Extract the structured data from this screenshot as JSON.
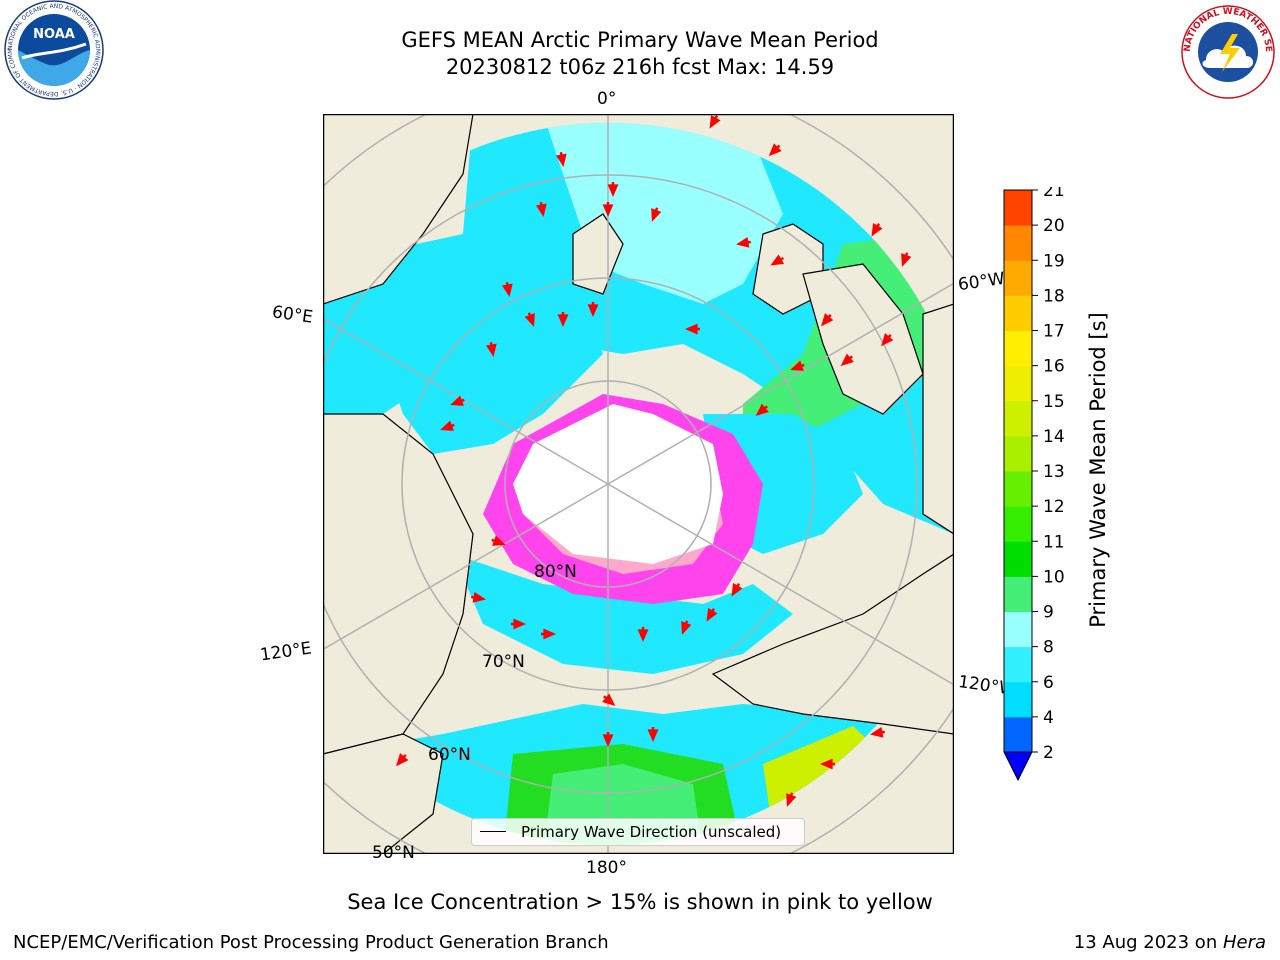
{
  "title": {
    "line1": "GEFS MEAN Arctic Primary Wave Mean Period",
    "line2": "20230812 t06z 216h fcst   Max: 14.59"
  },
  "logos": {
    "left": "noaa-logo",
    "right": "national-weather-service-logo",
    "left_text": "NOAA",
    "left_ring_text": "NATIONAL OCEANIC AND ATMOSPHERIC ADMINISTRATION · U.S. DEPARTMENT OF COMMERCE",
    "right_ring_text": "NATIONAL WEATHER SERVICE"
  },
  "map": {
    "projection": "north-polar-stereographic",
    "longitude_labels": {
      "top": "0°",
      "left_upper": "60°E",
      "left_lower": "120°E",
      "bottom": "180°",
      "right_upper": "60°W",
      "right_lower": "120°W"
    },
    "latitude_labels": [
      "80°N",
      "70°N",
      "60°N",
      "50°N"
    ],
    "colors": {
      "land": "#efecdc",
      "sea_ice_unmasked": "#ffffff",
      "sea_ice_low": "#ff33ff",
      "sea_ice_high": "#ffcc66",
      "graticule": "#b0b0b0",
      "arrows": "#ff0000"
    }
  },
  "colorbar": {
    "label": "Primary Wave Mean Period [s]",
    "ticks": [
      "2",
      "4",
      "6",
      "8",
      "9",
      "10",
      "11",
      "12",
      "13",
      "14",
      "15",
      "16",
      "17",
      "18",
      "19",
      "20",
      "21"
    ],
    "colors": [
      "#0066ff",
      "#00ddff",
      "#33f0ff",
      "#99ffff",
      "#44ee77",
      "#00dd00",
      "#33ee00",
      "#66f000",
      "#aaee00",
      "#ccf000",
      "#eeee00",
      "#ffee00",
      "#ffcc00",
      "#ffaa00",
      "#ff8800",
      "#ff4400",
      "#ff0000"
    ],
    "under_color": "#0000ff"
  },
  "legend": {
    "label": "Primary Wave Direction (unscaled)"
  },
  "subtitle": "Sea Ice Concentration > 15% is shown in pink to yellow",
  "footer": {
    "left": "NCEP/EMC/Verification Post Processing Product Generation Branch",
    "date": "13 Aug 2023 on ",
    "machine": "Hera"
  }
}
